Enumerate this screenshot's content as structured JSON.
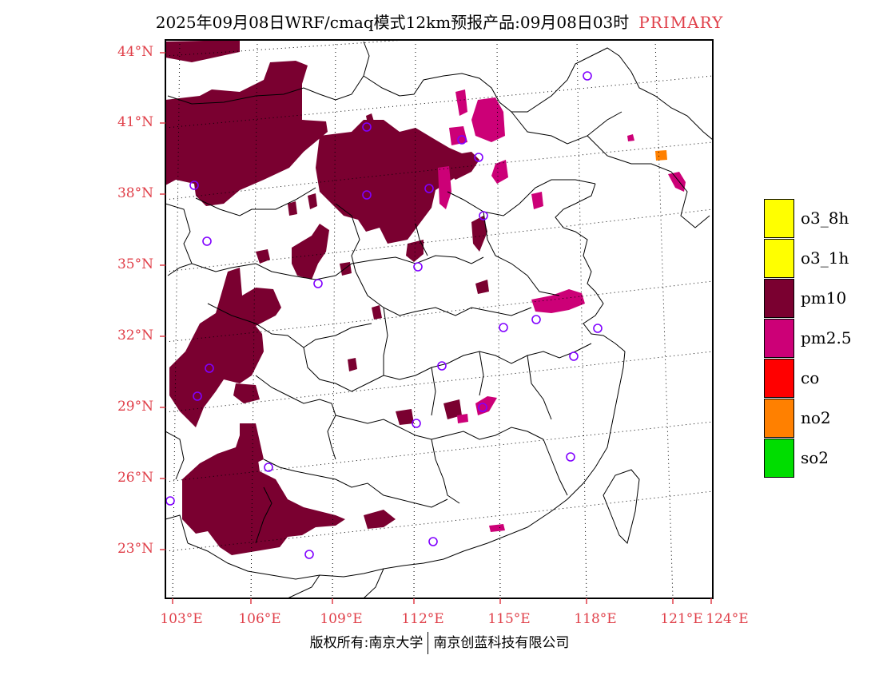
{
  "title": {
    "main": "2025年09月08日WRF/cmaq模式12km预报产品:09月08日03时",
    "tag": "PRIMARY"
  },
  "colors": {
    "label_red": "#e0404a",
    "pm10": "#7a0030",
    "pm25": "#cc0077",
    "no2": "#ff8000",
    "co": "#ff0000",
    "so2": "#00dd00",
    "o3": "#ffff00",
    "station_circle": "#8000ff"
  },
  "axes": {
    "lat_labels": [
      "44°N",
      "41°N",
      "38°N",
      "35°N",
      "32°N",
      "29°N",
      "26°N",
      "23°N"
    ],
    "lon_labels": [
      "103°E",
      "106°E",
      "109°E",
      "112°E",
      "115°E",
      "118°E",
      "121°E",
      "124°E"
    ]
  },
  "legend": [
    {
      "label": "o3_8h",
      "color": "#ffff00"
    },
    {
      "label": "o3_1h",
      "color": "#ffff00"
    },
    {
      "label": "pm10",
      "color": "#7a0030"
    },
    {
      "label": "pm2.5",
      "color": "#cc0077"
    },
    {
      "label": "co",
      "color": "#ff0000"
    },
    {
      "label": "no2",
      "color": "#ff8000"
    },
    {
      "label": "so2",
      "color": "#00dd00"
    }
  ],
  "copyright": {
    "left": "版权所有:南京大学",
    "right": "南京创蓝科技有限公司"
  }
}
